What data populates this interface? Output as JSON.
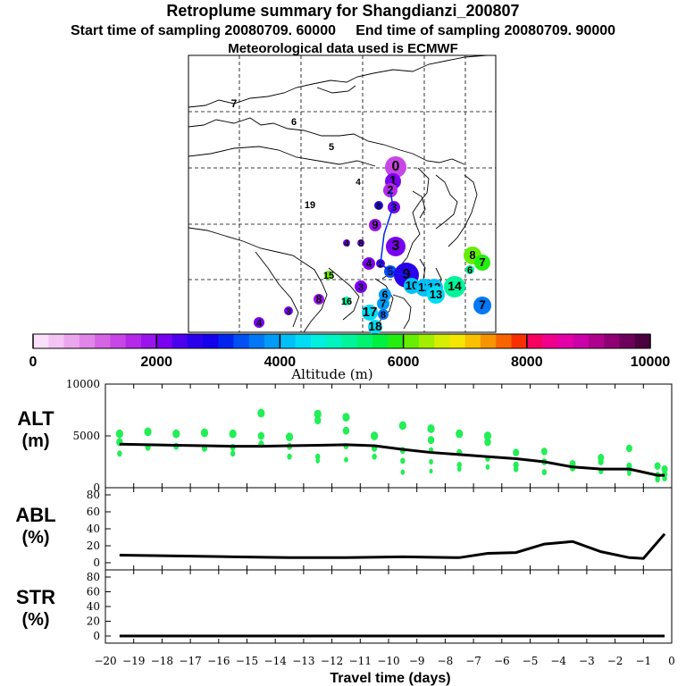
{
  "titles": {
    "main": "Retroplume summary for Shangdianzi_200807",
    "start": "Start time of sampling 20080709. 60000",
    "end": "End time of sampling 20080709. 90000",
    "met": "Meteorological data used is ECMWF"
  },
  "colorbar": {
    "ticks": [
      "0",
      "2000",
      "4000",
      "6000",
      "8000",
      "10000"
    ],
    "label": "Altitude (m)",
    "colors": [
      "#fbe0fb",
      "#f4c4f4",
      "#eca6ee",
      "#e285ea",
      "#d665e6",
      "#c846e6",
      "#b42ae8",
      "#9a14ec",
      "#7a00f0",
      "#4c00ee",
      "#2a00ec",
      "#1400ec",
      "#0024f0",
      "#0050f4",
      "#0078f6",
      "#009cf8",
      "#00c0f8",
      "#00dcf4",
      "#00f0e0",
      "#00f4c0",
      "#00f49a",
      "#00f470",
      "#00f040",
      "#24ee10",
      "#66ee00",
      "#a2ee00",
      "#d6ee00",
      "#f4e600",
      "#f8c000",
      "#f89400",
      "#f86400",
      "#f83000",
      "#f80060",
      "#f0008c",
      "#e400a8",
      "#cc00a8",
      "#b0008e",
      "#900074",
      "#6c005a",
      "#4c0040"
    ]
  },
  "map_labels": [
    {
      "t": "7",
      "c": "#06a02a"
    },
    {
      "t": "6",
      "c": "#06a02a"
    },
    {
      "t": "5",
      "c": "#06a02a"
    },
    {
      "t": "4",
      "c": "#2a00ec"
    },
    {
      "t": "0",
      "c": "#c846e6"
    },
    {
      "t": "1",
      "c": "#7a00f0"
    },
    {
      "t": "2",
      "c": "#b42ae8"
    },
    {
      "t": "8",
      "c": "#2a00ec"
    },
    {
      "t": "3",
      "c": "#7a00f0"
    },
    {
      "t": "9",
      "c": "#9a14ec"
    },
    {
      "t": "19",
      "c": "#a2ee00"
    },
    {
      "t": "4",
      "c": "#7a00f0"
    },
    {
      "t": "8",
      "c": "#7a00f0"
    },
    {
      "t": "3",
      "c": "#7a00f0"
    },
    {
      "t": "4",
      "c": "#7a00f0"
    },
    {
      "t": "2",
      "c": "#4c00ee"
    },
    {
      "t": "5",
      "c": "#0050f4"
    },
    {
      "t": "15",
      "c": "#66ee00"
    },
    {
      "t": "3",
      "c": "#7a00f0"
    },
    {
      "t": "16",
      "c": "#00f49a"
    },
    {
      "t": "6",
      "c": "#009cf8"
    },
    {
      "t": "7",
      "c": "#009cf8"
    },
    {
      "t": "8",
      "c": "#0078f6"
    },
    {
      "t": "17",
      "c": "#00dcf4"
    },
    {
      "t": "18",
      "c": "#00dcf4"
    },
    {
      "t": "4",
      "c": "#7a00f0"
    },
    {
      "t": "3",
      "c": "#7a00f0"
    },
    {
      "t": "8",
      "c": "#9a14ec"
    },
    {
      "t": "9",
      "c": "#2a00ec"
    },
    {
      "t": "10",
      "c": "#00c0f8"
    },
    {
      "t": "11",
      "c": "#00c0f8"
    },
    {
      "t": "12",
      "c": "#00c0f8"
    },
    {
      "t": "13",
      "c": "#00dcf4"
    },
    {
      "t": "14",
      "c": "#00f49a"
    },
    {
      "t": "6",
      "c": "#00f49a"
    },
    {
      "t": "8",
      "c": "#66ee00"
    },
    {
      "t": "7",
      "c": "#24ee10"
    },
    {
      "t": "7",
      "c": "#0078f6"
    }
  ],
  "chart_data": {
    "type": "line",
    "x": [
      -19.5,
      -19,
      -18.5,
      -18,
      -17.5,
      -17,
      -16.5,
      -16,
      -15.5,
      -15,
      -14.5,
      -14,
      -13.5,
      -13,
      -12.5,
      -12,
      -11.5,
      -11,
      -10.5,
      -10,
      -9.5,
      -9,
      -8.5,
      -8,
      -7.5,
      -7,
      -6.5,
      -6,
      -5.5,
      -5,
      -4.5,
      -4,
      -3.5,
      -3,
      -2.5,
      -2,
      -1.5,
      -1,
      -0.5,
      -0.25
    ],
    "xlim": [
      -20,
      0
    ],
    "xticks": [
      -20,
      -19,
      -18,
      -17,
      -16,
      -15,
      -14,
      -13,
      -12,
      -11,
      -10,
      -9,
      -8,
      -7,
      -6,
      -5,
      -4,
      -3,
      -2,
      -1,
      0
    ],
    "xlabel": "Travel time (days)",
    "panels": [
      {
        "name": "ALT",
        "unit": "(m)",
        "ylim": [
          0,
          10000
        ],
        "yticks": [
          "10000",
          "5000",
          "0"
        ],
        "mean_x": [
          -19.5,
          -18.5,
          -17.5,
          -16.5,
          -15.5,
          -14.5,
          -13.5,
          -12.5,
          -11.5,
          -10.5,
          -9.5,
          -8.5,
          -7.5,
          -6.5,
          -5.5,
          -4.5,
          -3.5,
          -2.5,
          -1.5,
          -0.5,
          -0.25
        ],
        "mean_values": [
          4200,
          4150,
          4100,
          4050,
          4000,
          4000,
          4050,
          4100,
          4150,
          4050,
          3700,
          3400,
          3200,
          3000,
          2800,
          2500,
          2000,
          1800,
          1800,
          1200,
          1200
        ],
        "clusters": [
          {
            "x": -19.5,
            "y": [
              5200,
              4400,
              3300
            ]
          },
          {
            "x": -18.5,
            "y": [
              5400,
              3900
            ]
          },
          {
            "x": -17.5,
            "y": [
              5200,
              4000
            ]
          },
          {
            "x": -16.5,
            "y": [
              5300,
              3800
            ]
          },
          {
            "x": -15.5,
            "y": [
              5200,
              3900,
              3300
            ]
          },
          {
            "x": -14.5,
            "y": [
              7200,
              5000,
              4200
            ]
          },
          {
            "x": -13.5,
            "y": [
              4900,
              4000,
              3000
            ]
          },
          {
            "x": -12.5,
            "y": [
              7100,
              6500,
              3000,
              2600
            ]
          },
          {
            "x": -11.5,
            "y": [
              6800,
              5500,
              4000,
              2700
            ]
          },
          {
            "x": -10.5,
            "y": [
              5000,
              3800,
              3000
            ]
          },
          {
            "x": -9.5,
            "y": [
              6000,
              3600,
              2600,
              1500
            ]
          },
          {
            "x": -8.5,
            "y": [
              5700,
              4600,
              3600,
              2500,
              1600
            ]
          },
          {
            "x": -7.5,
            "y": [
              5200,
              3400,
              2200,
              1800
            ]
          },
          {
            "x": -6.5,
            "y": [
              5000,
              4400,
              2800,
              2000
            ]
          },
          {
            "x": -5.5,
            "y": [
              3400,
              2200,
              1800
            ]
          },
          {
            "x": -4.5,
            "y": [
              3500,
              2500,
              1500
            ]
          },
          {
            "x": -3.5,
            "y": [
              2300,
              1900
            ]
          },
          {
            "x": -2.5,
            "y": [
              2900,
              2500,
              1600
            ]
          },
          {
            "x": -1.5,
            "y": [
              3800,
              2100,
              1700,
              1400
            ]
          },
          {
            "x": -0.5,
            "y": [
              2100,
              1200,
              800
            ]
          },
          {
            "x": -0.25,
            "y": [
              1800,
              1300,
              900
            ]
          }
        ]
      },
      {
        "name": "ABL",
        "unit": "(%)",
        "ylim": [
          0,
          90
        ],
        "yticks": [
          "80",
          "60",
          "40",
          "20",
          "0"
        ],
        "x": [
          -19.5,
          -17.5,
          -15.5,
          -13.5,
          -11.5,
          -9.5,
          -7.5,
          -6.5,
          -5.5,
          -4.5,
          -3.5,
          -2.5,
          -1.5,
          -1,
          -0.25
        ],
        "values": [
          9,
          8,
          7,
          6,
          6,
          7,
          6,
          11,
          12,
          22,
          25,
          13,
          6,
          5,
          34
        ]
      },
      {
        "name": "STR",
        "unit": "(%)",
        "ylim": [
          0,
          90
        ],
        "yticks": [
          "80",
          "60",
          "40",
          "20",
          "0"
        ],
        "x": [
          -19.5,
          -0.25
        ],
        "values": [
          0,
          0
        ]
      }
    ]
  }
}
